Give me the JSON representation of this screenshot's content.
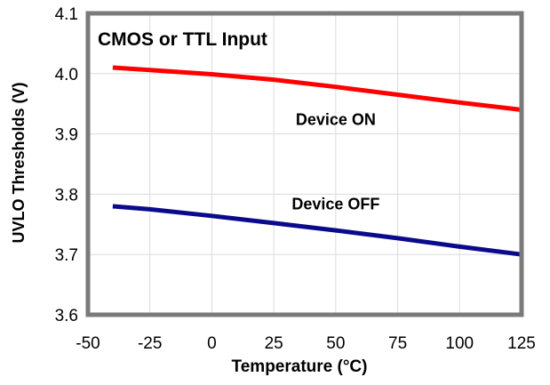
{
  "chart_data": {
    "type": "line",
    "title": "CMOS or TTL Input",
    "xlabel": "Temperature (°C)",
    "ylabel": "UVLO Thresholds (V)",
    "xlim": [
      -50,
      125
    ],
    "ylim": [
      3.6,
      4.1
    ],
    "xticks": [
      -50,
      -25,
      0,
      25,
      50,
      75,
      100,
      125
    ],
    "yticks": [
      "3.6",
      "3.7",
      "3.8",
      "3.9",
      "4.0",
      "4.1"
    ],
    "grid": true,
    "series": [
      {
        "name": "Device ON",
        "color": "#ff0000",
        "x": [
          -40,
          -25,
          0,
          25,
          50,
          75,
          100,
          125
        ],
        "y": [
          4.01,
          4.006,
          3.999,
          3.99,
          3.978,
          3.965,
          3.952,
          3.94
        ]
      },
      {
        "name": "Device OFF",
        "color": "#0a0a8c",
        "x": [
          -40,
          -25,
          0,
          25,
          50,
          75,
          100,
          125
        ],
        "y": [
          3.78,
          3.775,
          3.764,
          3.752,
          3.74,
          3.727,
          3.713,
          3.7
        ]
      }
    ],
    "annotations": [
      {
        "text": "Device ON",
        "x": 50,
        "y": 3.915
      },
      {
        "text": "Device OFF",
        "x": 50,
        "y": 3.775
      }
    ]
  }
}
